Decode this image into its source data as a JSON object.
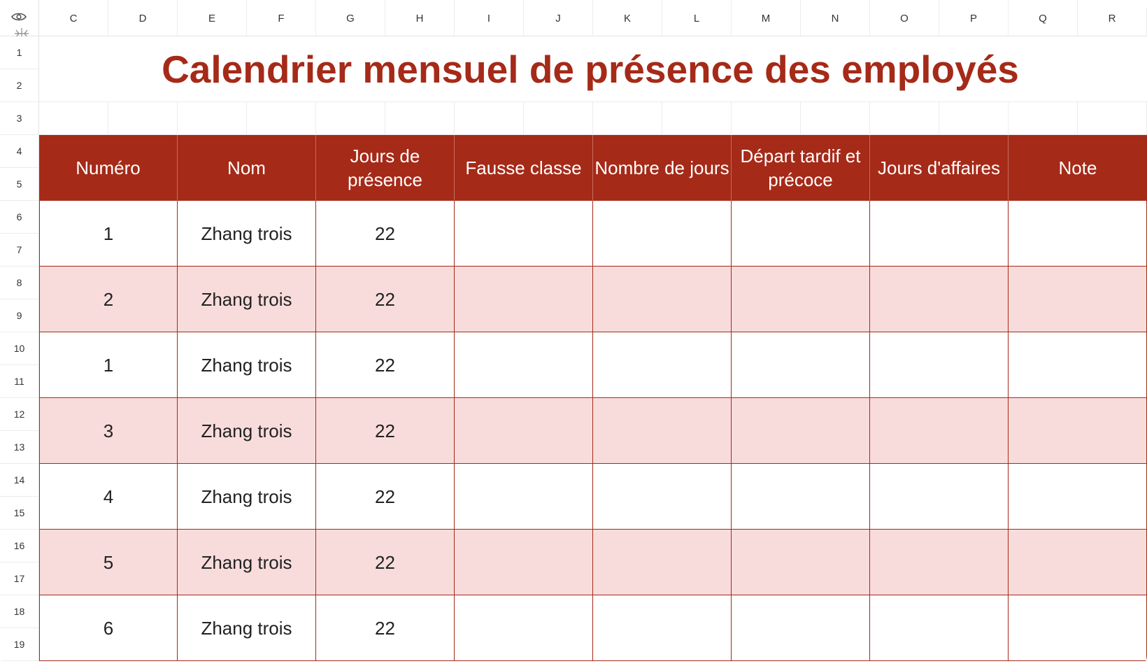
{
  "columns": [
    "C",
    "D",
    "E",
    "F",
    "G",
    "H",
    "I",
    "J",
    "K",
    "L",
    "M",
    "N",
    "O",
    "P",
    "Q",
    "R"
  ],
  "rows": [
    "1",
    "2",
    "3",
    "4",
    "5",
    "6",
    "7",
    "8",
    "9",
    "10",
    "11",
    "12",
    "13",
    "14",
    "15",
    "16",
    "17",
    "18",
    "19"
  ],
  "sheet": {
    "title": "Calendrier mensuel de présence des employés",
    "headers": [
      "Numéro",
      "Nom",
      "Jours de présence",
      "Fausse classe",
      "Nombre de jours",
      "Départ tardif et précoce",
      "Jours d'affaires",
      "Note"
    ],
    "records": [
      [
        "1",
        "Zhang trois",
        "22",
        "",
        "",
        "",
        "",
        ""
      ],
      [
        "2",
        "Zhang trois",
        "22",
        "",
        "",
        "",
        "",
        ""
      ],
      [
        "1",
        "Zhang trois",
        "22",
        "",
        "",
        "",
        "",
        ""
      ],
      [
        "3",
        "Zhang trois",
        "22",
        "",
        "",
        "",
        "",
        ""
      ],
      [
        "4",
        "Zhang trois",
        "22",
        "",
        "",
        "",
        "",
        ""
      ],
      [
        "5",
        "Zhang trois",
        "22",
        "",
        "",
        "",
        "",
        ""
      ],
      [
        "6",
        "Zhang trois",
        "22",
        "",
        "",
        "",
        "",
        ""
      ]
    ]
  },
  "colors": {
    "accent": "#a52a18",
    "band": "#f8dcdb"
  },
  "icons": {
    "corner": "eye-icon",
    "freeze": "freeze-panes-icon"
  }
}
